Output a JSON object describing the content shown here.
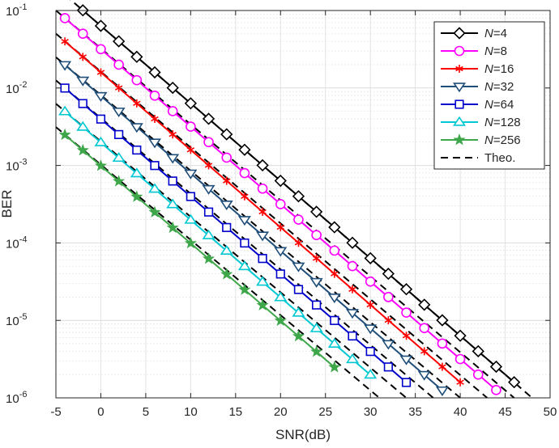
{
  "chart_data": {
    "type": "line",
    "xlabel": "SNR(dB)",
    "ylabel": "BER",
    "y_scale": "log",
    "xlim": [
      -5,
      50
    ],
    "ylim": [
      1e-06,
      0.1
    ],
    "grid": true,
    "legend_position": "top-right",
    "x_ticks": [
      -5,
      0,
      5,
      10,
      15,
      20,
      25,
      30,
      35,
      40,
      45,
      50
    ],
    "x_tick_labels": [
      "-5",
      "0",
      "5",
      "10",
      "15",
      "20",
      "25",
      "30",
      "35",
      "40",
      "45",
      "50"
    ],
    "y_ticks": [
      {
        "value": 1e-06,
        "exp": "-6"
      },
      {
        "value": 1e-05,
        "exp": "-5"
      },
      {
        "value": 0.0001,
        "exp": "-4"
      },
      {
        "value": 0.001,
        "exp": "-3"
      },
      {
        "value": 0.01,
        "exp": "-2"
      },
      {
        "value": 0.1,
        "exp": "-1"
      }
    ],
    "y_tick_base": "10",
    "series": [
      {
        "name": "N=4",
        "italic_part": "N",
        "rest": "=4",
        "color": "#000000",
        "marker": "diamond",
        "x_start": -2,
        "x_end": 46,
        "y_at_x0": 0.0634
      },
      {
        "name": "N=8",
        "italic_part": "N",
        "rest": "=8",
        "color": "#ff00ff",
        "marker": "circle",
        "x_start": -4,
        "x_end": 44,
        "y_at_x0": 0.0317
      },
      {
        "name": "N=16",
        "italic_part": "N",
        "rest": "=16",
        "color": "#ff0000",
        "marker": "asterisk",
        "x_start": -4,
        "x_end": 40,
        "y_at_x0": 0.0159
      },
      {
        "name": "N=32",
        "italic_part": "N",
        "rest": "=32",
        "color": "#1f4e79",
        "marker": "triangle-down",
        "x_start": -4,
        "x_end": 38,
        "y_at_x0": 0.0079
      },
      {
        "name": "N=64",
        "italic_part": "N",
        "rest": "=64",
        "color": "#0000cc",
        "marker": "square",
        "x_start": -4,
        "x_end": 34,
        "y_at_x0": 0.00397
      },
      {
        "name": "N=128",
        "italic_part": "N",
        "rest": "=128",
        "color": "#00c8d2",
        "marker": "triangle-up",
        "x_start": -4,
        "x_end": 30,
        "y_at_x0": 0.00198
      },
      {
        "name": "N=256",
        "italic_part": "N",
        "rest": "=256",
        "color": "#3ea74a",
        "marker": "star",
        "x_start": -4,
        "x_end": 26,
        "y_at_x0": 0.00099
      }
    ],
    "x_step": 2,
    "slope_decades_per_db": -0.1,
    "theory": {
      "name": "Theo.",
      "color": "#000000",
      "dash": "dashed",
      "x_start": -5,
      "x_end_at_ymin": [
        48,
        46,
        43,
        40,
        37,
        34,
        31
      ]
    }
  }
}
